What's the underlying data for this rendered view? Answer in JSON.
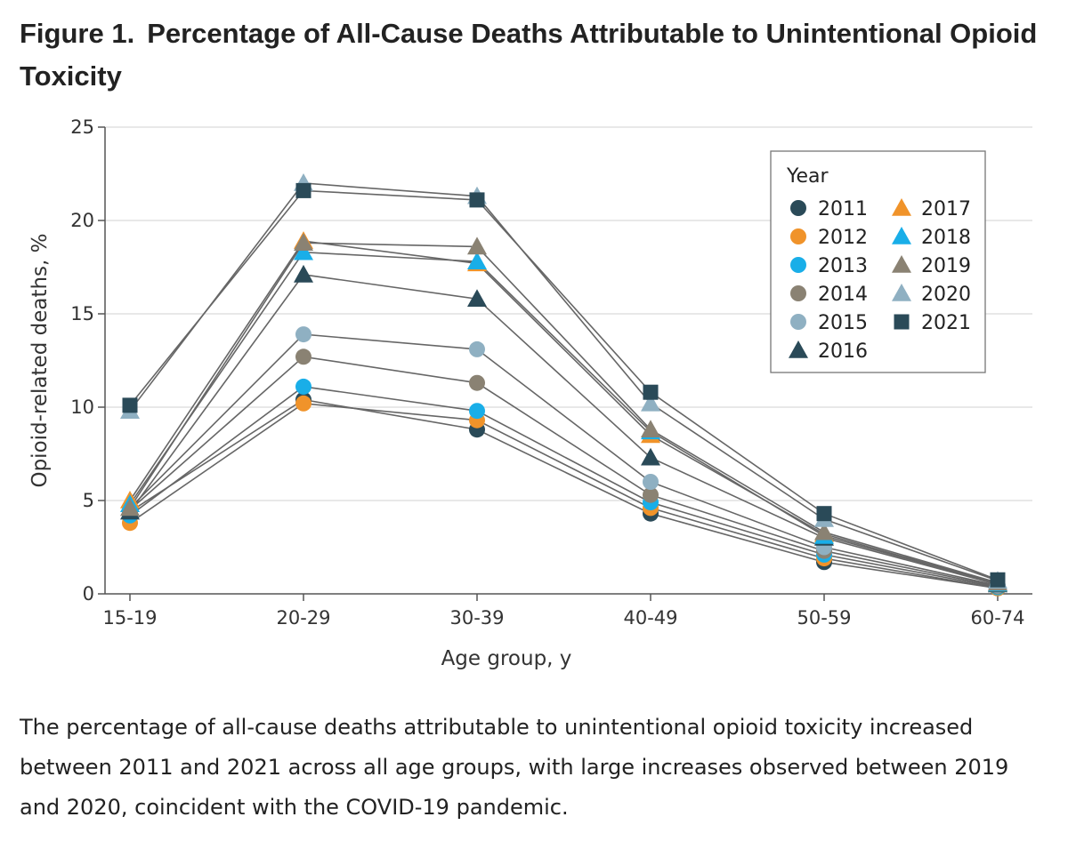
{
  "figure": {
    "label": "Figure 1.",
    "title": "Percentage of All-Cause Deaths Attributable to Unintentional Opioid Toxicity",
    "caption": "The percentage of all-cause deaths attributable to unintentional opioid toxicity increased between 2011 and 2021 across all age groups, with large increases observed between 2019 and 2020, coincident with the COVID-19 pandemic."
  },
  "chart_data": {
    "type": "line",
    "title": "Percentage of All-Cause Deaths Attributable to Unintentional Opioid Toxicity",
    "xlabel": "Age group, y",
    "ylabel": "Opioid-related deaths, %",
    "categories": [
      "15-19",
      "20-29",
      "30-39",
      "40-49",
      "50-59",
      "60-74"
    ],
    "ylim": [
      0,
      25
    ],
    "yticks": [
      0,
      5,
      10,
      15,
      20,
      25
    ],
    "grid": "horizontal",
    "legend": {
      "title": "Year",
      "position": "top-right"
    },
    "line_color": "#666666",
    "series": [
      {
        "name": "2011",
        "marker": "circle",
        "color": "#2a4a58",
        "values": [
          4.4,
          10.4,
          8.8,
          4.3,
          1.7,
          0.3
        ]
      },
      {
        "name": "2012",
        "marker": "circle",
        "color": "#f0932a",
        "values": [
          3.8,
          10.2,
          9.3,
          4.6,
          1.9,
          0.3
        ]
      },
      {
        "name": "2013",
        "marker": "circle",
        "color": "#19aee8",
        "values": [
          4.2,
          11.1,
          9.8,
          4.9,
          2.1,
          0.35
        ]
      },
      {
        "name": "2014",
        "marker": "circle",
        "color": "#8a8273",
        "values": [
          4.5,
          12.7,
          11.3,
          5.3,
          2.3,
          0.4
        ]
      },
      {
        "name": "2015",
        "marker": "circle",
        "color": "#8fb0c2",
        "values": [
          4.6,
          13.9,
          13.1,
          6.0,
          2.5,
          0.45
        ]
      },
      {
        "name": "2016",
        "marker": "triangle",
        "color": "#2a4a58",
        "values": [
          4.4,
          17.1,
          15.8,
          7.3,
          3.0,
          0.5
        ]
      },
      {
        "name": "2017",
        "marker": "triangle",
        "color": "#f0932a",
        "values": [
          5.0,
          18.9,
          17.7,
          8.5,
          3.2,
          0.55
        ]
      },
      {
        "name": "2018",
        "marker": "triangle",
        "color": "#19aee8",
        "values": [
          4.8,
          18.3,
          17.8,
          8.7,
          3.1,
          0.55
        ]
      },
      {
        "name": "2019",
        "marker": "triangle",
        "color": "#8a8273",
        "values": [
          4.6,
          18.8,
          18.6,
          8.8,
          3.3,
          0.6
        ]
      },
      {
        "name": "2020",
        "marker": "triangle",
        "color": "#8fb0c2",
        "values": [
          9.8,
          22.0,
          21.3,
          10.2,
          4.0,
          0.7
        ]
      },
      {
        "name": "2021",
        "marker": "square",
        "color": "#2a4a58",
        "values": [
          10.1,
          21.6,
          21.1,
          10.8,
          4.3,
          0.75
        ]
      }
    ]
  }
}
